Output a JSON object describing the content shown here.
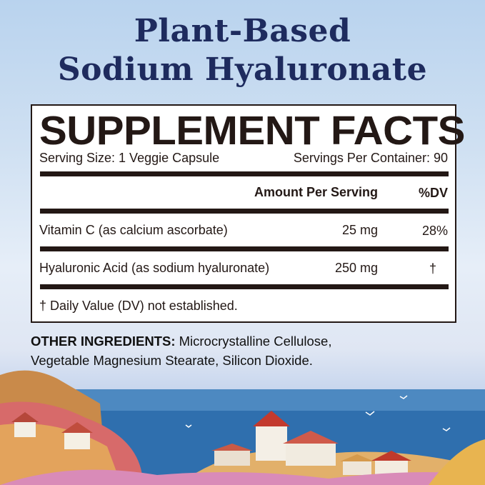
{
  "title": {
    "line1": "Plant-Based",
    "line2": "Sodium Hyaluronate"
  },
  "facts": {
    "heading": "SUPPLEMENT FACTS",
    "serving_size": "Serving Size: 1 Veggie Capsule",
    "servings_per_container": "Servings Per Container: 90",
    "col_amount": "Amount Per Serving",
    "col_dv": "%DV",
    "rows": [
      {
        "name": "Vitamin C (as calcium ascorbate)",
        "amount": "25 mg",
        "dv": "28%"
      },
      {
        "name": "Hyaluronic Acid (as sodium hyaluronate)",
        "amount": "250 mg",
        "dv": "†"
      }
    ],
    "footnote": "† Daily Value (DV) not established."
  },
  "other_ingredients": {
    "label": "OTHER INGREDIENTS:",
    "line1": " Microcrystalline Cellulose,",
    "line2": "Vegetable Magnesium Stearate, Silicon Dioxide."
  },
  "colors": {
    "title": "#1e2b5e",
    "text": "#231815",
    "sea": "#2f6fae"
  }
}
